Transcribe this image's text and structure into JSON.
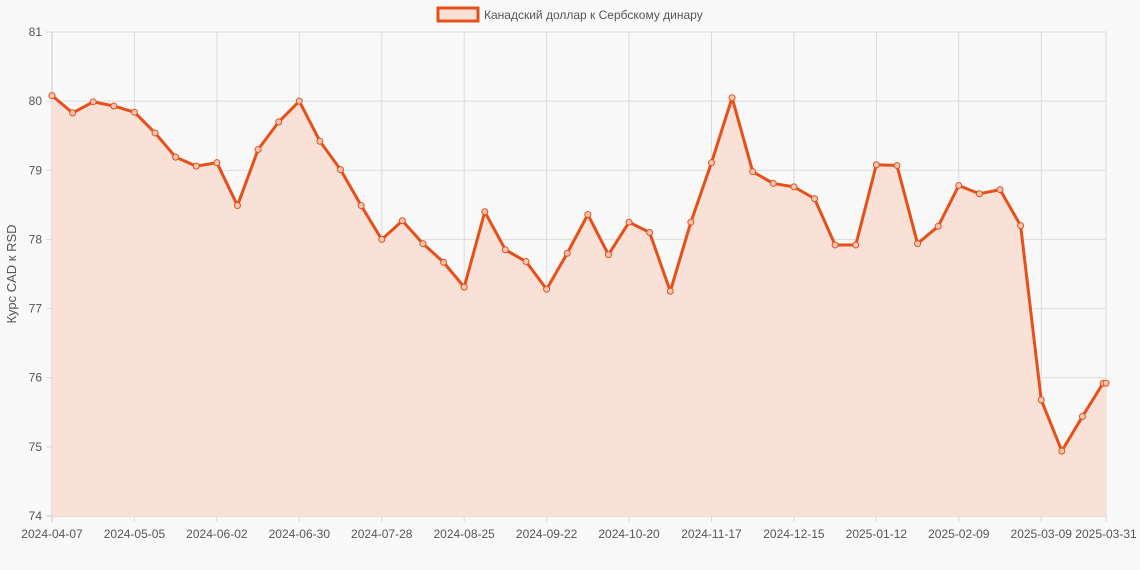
{
  "chart_data": {
    "type": "area",
    "legend": {
      "label": "Канадский доллар к Сербскому динару",
      "position": "top-center"
    },
    "ylabel": "Курс CAD к RSD",
    "ylim": [
      74,
      81
    ],
    "y_ticks": [
      "74",
      "75",
      "76",
      "77",
      "78",
      "79",
      "80",
      "81"
    ],
    "grid": true,
    "colors": {
      "line": "#e8501a",
      "fill": "#f9e1d7",
      "point_fill": "#f7c7b3"
    },
    "x_tick_labels": [
      "2024-04-07",
      "2024-05-05",
      "2024-06-02",
      "2024-06-30",
      "2024-07-28",
      "2024-08-25",
      "2024-09-22",
      "2024-10-20",
      "2024-11-17",
      "2024-12-15",
      "2025-01-12",
      "2025-02-09",
      "2025-03-09",
      "2025-03-31"
    ],
    "x": [
      "2024-04-07",
      "2024-04-14",
      "2024-04-21",
      "2024-04-28",
      "2024-05-05",
      "2024-05-12",
      "2024-05-19",
      "2024-05-26",
      "2024-06-02",
      "2024-06-09",
      "2024-06-16",
      "2024-06-23",
      "2024-06-30",
      "2024-07-07",
      "2024-07-14",
      "2024-07-21",
      "2024-07-28",
      "2024-08-04",
      "2024-08-11",
      "2024-08-18",
      "2024-08-25",
      "2024-09-01",
      "2024-09-08",
      "2024-09-15",
      "2024-09-22",
      "2024-09-29",
      "2024-10-06",
      "2024-10-13",
      "2024-10-20",
      "2024-10-27",
      "2024-11-03",
      "2024-11-10",
      "2024-11-17",
      "2024-11-24",
      "2024-12-01",
      "2024-12-08",
      "2024-12-15",
      "2024-12-22",
      "2024-12-29",
      "2025-01-05",
      "2025-01-12",
      "2025-01-19",
      "2025-01-26",
      "2025-02-02",
      "2025-02-09",
      "2025-02-16",
      "2025-02-23",
      "2025-03-02",
      "2025-03-09",
      "2025-03-16",
      "2025-03-23",
      "2025-03-30",
      "2025-03-31"
    ],
    "series": [
      {
        "name": "Канадский доллар к Сербскому динару",
        "values": [
          80.08,
          79.83,
          79.99,
          79.93,
          79.84,
          79.54,
          79.19,
          79.06,
          79.11,
          78.49,
          79.3,
          79.7,
          80.0,
          79.42,
          79.01,
          78.49,
          78.0,
          78.27,
          77.94,
          77.67,
          77.31,
          78.4,
          77.85,
          77.68,
          77.28,
          77.8,
          78.36,
          77.78,
          78.25,
          78.1,
          77.25,
          78.25,
          79.11,
          80.05,
          78.98,
          78.81,
          78.76,
          78.59,
          77.92,
          77.92,
          79.08,
          79.07,
          77.94,
          78.19,
          78.78,
          78.66,
          78.72,
          78.2,
          75.68,
          74.94,
          75.44,
          75.92,
          75.92
        ]
      }
    ]
  }
}
